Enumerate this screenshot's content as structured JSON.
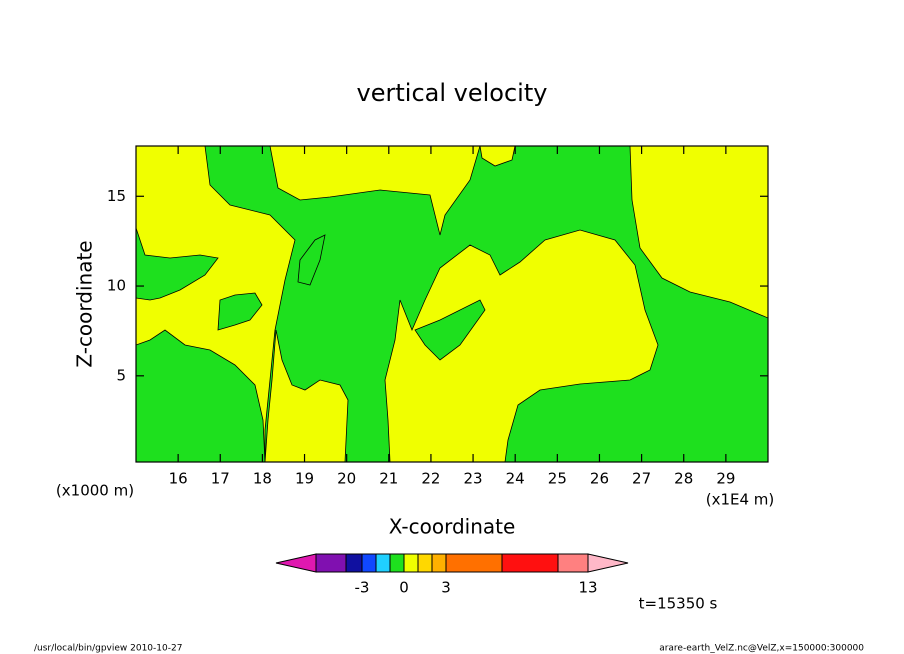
{
  "chart_data": {
    "type": "contour",
    "title": "vertical velocity",
    "xlabel": "X-coordinate",
    "ylabel": "Z-coordinate",
    "x_unit": "(x1E4 m)",
    "y_unit": "(x1000 m)",
    "xlim": [
      15,
      30
    ],
    "xticks": [
      16,
      17,
      18,
      19,
      20,
      21,
      22,
      23,
      24,
      25,
      26,
      27,
      28,
      29
    ],
    "ylim": [
      0.2,
      17.8
    ],
    "yticks": [
      5,
      10,
      15
    ],
    "colorbar": {
      "colors": [
        "#e018b0",
        "#8010b0",
        "#1010a0",
        "#1048ff",
        "#20d0ff",
        "#1ee01e",
        "#f0ff00",
        "#ffd800",
        "#ffb000",
        "#ff7000",
        "#ff1010",
        "#ff8080",
        "#ffb8c8"
      ],
      "ticks": [
        -3,
        0,
        3,
        13
      ]
    },
    "annotation": "t=15350 s",
    "footer_left": "/usr/local/bin/gpview   2010-10-27",
    "footer_right": "arare-earth_VelZ.nc@VelZ,x=150000:300000"
  }
}
